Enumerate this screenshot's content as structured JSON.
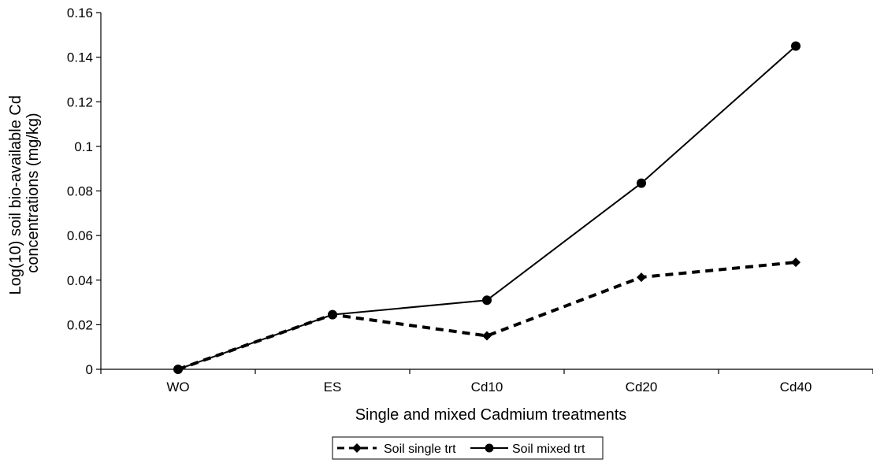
{
  "chart_data": {
    "type": "line",
    "title": "",
    "xlabel": "Single and mixed Cadmium treatments",
    "ylabel": [
      "Log(10) soil bio-available Cd",
      "concentrations (mg/kg)"
    ],
    "categories": [
      "WO",
      "ES",
      "Cd10",
      "Cd20",
      "Cd40"
    ],
    "ylim": [
      0,
      0.16
    ],
    "yticks": [
      "0",
      "0.02",
      "0.04",
      "0.06",
      "0.08",
      "0.1",
      "0.12",
      "0.14",
      "0.16"
    ],
    "grid": false,
    "legend": {
      "placement": "bottom"
    },
    "series": [
      {
        "name": "Soil single trt",
        "values": [
          0,
          0.0245,
          0.015,
          0.0413,
          0.048
        ],
        "marker": "diamond",
        "line": "dashed",
        "color": "#000000"
      },
      {
        "name": "Soil mixed trt",
        "values": [
          0,
          0.0245,
          0.031,
          0.0835,
          0.145
        ],
        "marker": "circle",
        "line": "solid",
        "color": "#000000"
      }
    ]
  }
}
